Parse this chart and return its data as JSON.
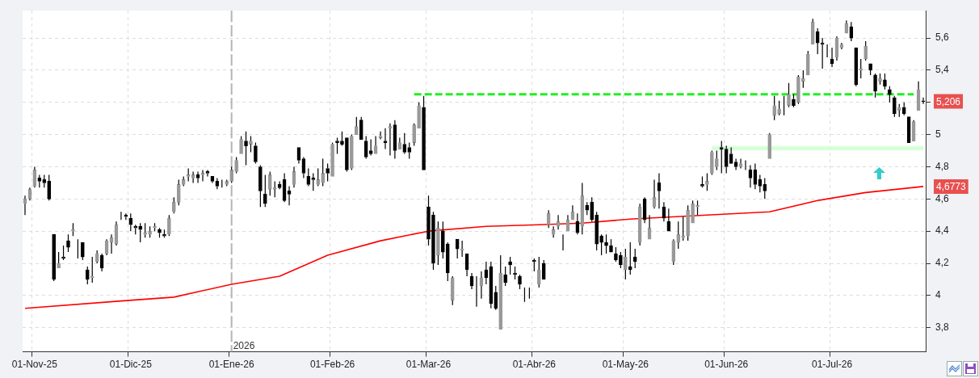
{
  "chart_data": {
    "type": "candlestick",
    "color": "#000000",
    "colors": [
      "#999999",
      "#999999",
      "#999999",
      "#000000",
      "#000000",
      "#000000",
      "#000000",
      "#999999",
      "#000000",
      "#000000",
      "#999999",
      "#999999",
      "#000000",
      "#000000",
      "#999999",
      "#999999",
      "#000000",
      "#999999",
      "#999999",
      "#999999",
      "#999999",
      "#000000",
      "#000000",
      "#000000",
      "#000000",
      "#999999",
      "#999999",
      "#999999",
      "#000000",
      "#000000",
      "#999999",
      "#999999",
      "#999999",
      "#999999",
      "#999999",
      "#999999",
      "#000000",
      "#999999",
      "#000000",
      "#000000",
      "#000000",
      "#999999",
      "#999999",
      "#999999",
      "#999999",
      "#999999",
      "#000000",
      "#999999",
      "#000000",
      "#000000",
      "#000000",
      "#999999",
      "#999999",
      "#000000",
      "#000000",
      "#000000",
      "#999999",
      "#000000",
      "#000000",
      "#000000",
      "#000000",
      "#999999",
      "#999999",
      "#000000",
      "#999999",
      "#000000",
      "#000000",
      "#000000",
      "#999999",
      "#999999",
      "#000000",
      "#000000",
      "#000000",
      "#999999",
      "#999999",
      "#000000",
      "#999999",
      "#000000",
      "#999999",
      "#000000",
      "#000000",
      "#999999",
      "#999999",
      "#000000",
      "#000000",
      "#000000",
      "#999999",
      "#000000",
      "#000000",
      "#999999",
      "#000000",
      "#999999",
      "#000000",
      "#000000",
      "#999999",
      "#999999",
      "#000000",
      "#000000",
      "#000000",
      "#999999",
      "#000000",
      "#000000",
      "#000000",
      "#000000",
      "#999999",
      "#999999",
      "#000000",
      "#999999",
      "#000000",
      "#999999",
      "#999999",
      "#999999",
      "#999999",
      "#999999",
      "#999999",
      "#000000",
      "#999999",
      "#000000",
      "#000000",
      "#000000",
      "#000000",
      "#000000",
      "#000000",
      "#000000",
      "#000000",
      "#999999",
      "#000000",
      "#000000",
      "#999999",
      "#000000",
      "#999999",
      "#999999",
      "#000000",
      "#000000",
      "#000000",
      "#999999",
      "#999999",
      "#999999",
      "#999999",
      "#999999",
      "#999999",
      "#000000",
      "#999999",
      "#999999",
      "#999999",
      "#000000",
      "#000000",
      "#000000",
      "#000000",
      "#999999",
      "#999999",
      "#000000",
      "#000000",
      "#000000",
      "#000000",
      "#999999",
      "#999999",
      "#999999",
      "#999999",
      "#999999",
      "#000000",
      "#999999",
      "#999999",
      "#999999",
      "#999999",
      "#000000",
      "#000000",
      "#999999",
      "#000000",
      "#999999",
      "#999999",
      "#999999",
      "#000000",
      "#000000",
      "#999999",
      "#999999",
      "#000000",
      "#000000",
      "#999999",
      "#000000",
      "#000000",
      "#000000",
      "#999999",
      "#000000",
      "#000000",
      "#999999",
      "#999999",
      "#000000"
    ],
    "categories": [
      null,
      null,
      "01-Nov-25",
      null,
      null,
      null,
      null,
      null,
      null,
      null,
      null,
      null,
      null,
      null,
      null,
      null,
      null,
      null,
      null,
      null,
      null,
      null,
      "01-Dic-25",
      null,
      null,
      null,
      null,
      null,
      null,
      null,
      null,
      null,
      null,
      null,
      null,
      null,
      null,
      null,
      null,
      null,
      null,
      null,
      null,
      "01-Ene-26",
      null,
      null,
      null,
      null,
      null,
      null,
      null,
      null,
      null,
      null,
      null,
      null,
      null,
      null,
      null,
      null,
      null,
      null,
      null,
      null,
      "01-Feb-26",
      null,
      null,
      null,
      null,
      null,
      null,
      null,
      null,
      null,
      null,
      null,
      null,
      null,
      null,
      null,
      null,
      null,
      null,
      null,
      "01-Mar-26",
      null,
      null,
      null,
      null,
      null,
      null,
      null,
      null,
      null,
      null,
      null,
      null,
      null,
      null,
      null,
      null,
      null,
      null,
      null,
      null,
      null,
      "01-Abr-26",
      null,
      null,
      null,
      null,
      null,
      null,
      null,
      null,
      null,
      null,
      null,
      null,
      null,
      null,
      null,
      null,
      null,
      null,
      "01-May-26",
      null,
      null,
      null,
      null,
      null,
      null,
      null,
      null,
      null,
      null,
      null,
      null,
      null,
      null,
      null,
      null,
      null,
      null,
      null,
      null,
      "01-Jun-26",
      null,
      null,
      null,
      null,
      null,
      null,
      null,
      null,
      null,
      null,
      null,
      null,
      null,
      null,
      null,
      null,
      null,
      null,
      null,
      null,
      null,
      "01-Jul-26",
      null,
      null,
      null,
      null,
      null,
      null,
      null,
      null,
      null,
      null,
      null,
      null,
      null,
      null,
      null,
      null,
      null,
      null,
      null
    ],
    "ohlc": [
      [
        4.57,
        4.62,
        4.5,
        4.6
      ],
      [
        4.6,
        4.67,
        4.59,
        4.66
      ],
      [
        4.68,
        4.8,
        4.67,
        4.78
      ],
      [
        4.73,
        4.75,
        4.67,
        4.71
      ],
      [
        4.72,
        4.75,
        4.67,
        4.7
      ],
      [
        4.71,
        4.75,
        4.59,
        4.6
      ],
      [
        4.38,
        4.38,
        4.09,
        4.1
      ],
      [
        4.17,
        4.27,
        4.17,
        4.2
      ],
      [
        4.24,
        4.31,
        4.22,
        4.23
      ],
      [
        4.34,
        4.38,
        4.27,
        4.3
      ],
      [
        4.4,
        4.45,
        4.37,
        4.41
      ],
      [
        4.32,
        4.35,
        4.23,
        4.32
      ],
      [
        4.33,
        4.33,
        4.22,
        4.24
      ],
      [
        4.16,
        4.18,
        4.07,
        4.1
      ],
      [
        4.11,
        4.24,
        4.08,
        4.12
      ],
      [
        4.21,
        4.28,
        4.2,
        4.26
      ],
      [
        4.25,
        4.26,
        4.15,
        4.17
      ],
      [
        4.26,
        4.35,
        4.25,
        4.34
      ],
      [
        4.33,
        4.38,
        4.26,
        4.36
      ],
      [
        4.32,
        4.46,
        4.31,
        4.44
      ],
      [
        4.49,
        4.52,
        4.47,
        4.49
      ],
      [
        4.5,
        4.51,
        4.47,
        4.49
      ],
      [
        4.48,
        4.51,
        4.4,
        4.44
      ],
      [
        4.43,
        4.44,
        4.38,
        4.42
      ],
      [
        4.43,
        4.45,
        4.33,
        4.41
      ],
      [
        4.38,
        4.45,
        4.36,
        4.39
      ],
      [
        4.38,
        4.43,
        4.36,
        4.4
      ],
      [
        4.42,
        4.45,
        4.4,
        4.43
      ],
      [
        4.41,
        4.42,
        4.36,
        4.39
      ],
      [
        4.38,
        4.41,
        4.36,
        4.37
      ],
      [
        4.38,
        4.5,
        4.37,
        4.48
      ],
      [
        4.52,
        4.61,
        4.51,
        4.58
      ],
      [
        4.58,
        4.72,
        4.56,
        4.69
      ],
      [
        4.69,
        4.74,
        4.68,
        4.72
      ],
      [
        4.74,
        4.79,
        4.71,
        4.75
      ],
      [
        4.73,
        4.77,
        4.7,
        4.75
      ],
      [
        4.75,
        4.77,
        4.7,
        4.73
      ],
      [
        4.75,
        4.78,
        4.71,
        4.76
      ],
      [
        4.77,
        4.78,
        4.74,
        4.76
      ],
      [
        4.74,
        4.74,
        4.7,
        4.71
      ],
      [
        4.71,
        4.73,
        4.66,
        4.68
      ],
      [
        4.7,
        4.72,
        4.67,
        4.7
      ],
      [
        4.69,
        4.72,
        4.68,
        4.71
      ],
      [
        4.71,
        4.8,
        4.7,
        4.78
      ],
      [
        4.77,
        4.86,
        4.76,
        4.84
      ],
      [
        4.88,
        4.99,
        4.88,
        4.97
      ],
      [
        4.96,
        5.02,
        4.81,
        4.93
      ],
      [
        4.94,
        4.99,
        4.89,
        4.96
      ],
      [
        4.93,
        4.95,
        4.82,
        4.83
      ],
      [
        4.8,
        4.81,
        4.55,
        4.65
      ],
      [
        4.63,
        4.75,
        4.55,
        4.57
      ],
      [
        4.66,
        4.77,
        4.62,
        4.75
      ],
      [
        4.66,
        4.71,
        4.61,
        4.67
      ],
      [
        4.69,
        4.71,
        4.66,
        4.67
      ],
      [
        4.72,
        4.76,
        4.58,
        4.59
      ],
      [
        4.65,
        4.68,
        4.56,
        4.63
      ],
      [
        4.69,
        4.8,
        4.67,
        4.77
      ],
      [
        4.92,
        4.92,
        4.82,
        4.84
      ],
      [
        4.85,
        4.86,
        4.73,
        4.76
      ],
      [
        4.74,
        4.79,
        4.68,
        4.69
      ],
      [
        4.73,
        4.76,
        4.65,
        4.72
      ],
      [
        4.69,
        4.79,
        4.68,
        4.72
      ],
      [
        4.7,
        4.85,
        4.68,
        4.76
      ],
      [
        4.79,
        4.82,
        4.71,
        4.76
      ],
      [
        4.74,
        4.95,
        4.74,
        4.94
      ],
      [
        4.96,
        4.98,
        4.88,
        4.95
      ],
      [
        4.96,
        5.02,
        4.93,
        4.94
      ],
      [
        4.98,
        4.98,
        4.77,
        4.78
      ],
      [
        4.79,
        5.0,
        4.78,
        4.99
      ],
      [
        5.0,
        5.11,
        5.0,
        5.05
      ],
      [
        5.09,
        5.11,
        4.97,
        4.97
      ],
      [
        4.96,
        4.99,
        4.85,
        4.86
      ],
      [
        4.9,
        4.97,
        4.87,
        4.88
      ],
      [
        4.88,
        4.99,
        4.88,
        4.93
      ],
      [
        4.98,
        5.02,
        4.97,
        4.99
      ],
      [
        4.96,
        5.04,
        4.91,
        4.95
      ],
      [
        5.04,
        5.07,
        4.87,
        5.05
      ],
      [
        5.06,
        5.09,
        4.85,
        4.9
      ],
      [
        4.91,
        4.98,
        4.91,
        4.95
      ],
      [
        4.94,
        5.01,
        4.88,
        4.89
      ],
      [
        4.92,
        4.95,
        4.85,
        4.89
      ],
      [
        4.95,
        5.07,
        4.93,
        5.06
      ],
      [
        5.04,
        5.2,
        5.04,
        5.18
      ],
      [
        5.17,
        5.24,
        4.78,
        4.78
      ],
      [
        4.55,
        4.62,
        4.31,
        4.35
      ],
      [
        4.5,
        4.52,
        4.16,
        4.2
      ],
      [
        4.25,
        4.46,
        4.19,
        4.42
      ],
      [
        4.4,
        4.46,
        4.23,
        4.27
      ],
      [
        4.32,
        4.33,
        4.09,
        4.14
      ],
      [
        3.97,
        4.12,
        3.94,
        4.11
      ],
      [
        4.35,
        4.35,
        4.23,
        4.29
      ],
      [
        4.28,
        4.34,
        4.24,
        4.29
      ],
      [
        4.26,
        4.26,
        4.12,
        4.16
      ],
      [
        4.12,
        4.14,
        4.04,
        4.06
      ],
      [
        4.05,
        4.12,
        3.93,
        4.05
      ],
      [
        4.06,
        4.15,
        3.98,
        4.11
      ],
      [
        4.16,
        4.21,
        4.07,
        4.11
      ],
      [
        4.18,
        4.21,
        3.92,
        3.95
      ],
      [
        4.02,
        4.06,
        3.91,
        3.92
      ],
      [
        3.79,
        4.25,
        3.79,
        4.14
      ],
      [
        4.13,
        4.18,
        4.06,
        4.08
      ],
      [
        4.21,
        4.24,
        4.13,
        4.19
      ],
      [
        4.14,
        4.18,
        4.1,
        4.13
      ],
      [
        4.12,
        4.13,
        4.04,
        4.07
      ],
      [
        3.99,
        4.05,
        3.96,
        3.99
      ],
      [
        4.0,
        4.05,
        3.98,
        4.0
      ],
      [
        4.22,
        4.23,
        4.15,
        4.21
      ],
      [
        4.07,
        4.24,
        4.05,
        4.16
      ],
      [
        4.2,
        4.22,
        4.1,
        4.1
      ],
      [
        4.44,
        4.53,
        4.42,
        4.51
      ],
      [
        4.38,
        4.43,
        4.36,
        4.41
      ],
      [
        4.43,
        4.5,
        4.41,
        4.46
      ],
      [
        4.34,
        4.38,
        4.28,
        4.34
      ],
      [
        4.4,
        4.5,
        4.4,
        4.47
      ],
      [
        4.47,
        4.56,
        4.47,
        4.52
      ],
      [
        4.46,
        4.51,
        4.38,
        4.39
      ],
      [
        4.43,
        4.7,
        4.38,
        4.62
      ],
      [
        4.56,
        4.58,
        4.5,
        4.53
      ],
      [
        4.58,
        4.61,
        4.46,
        4.47
      ],
      [
        4.5,
        4.52,
        4.28,
        4.32
      ],
      [
        4.37,
        4.38,
        4.25,
        4.33
      ],
      [
        4.33,
        4.38,
        4.26,
        4.31
      ],
      [
        4.31,
        4.35,
        4.27,
        4.27
      ],
      [
        4.26,
        4.3,
        4.21,
        4.22
      ],
      [
        4.25,
        4.27,
        4.17,
        4.19
      ],
      [
        4.16,
        4.29,
        4.1,
        4.24
      ],
      [
        4.18,
        4.33,
        4.13,
        4.16
      ],
      [
        4.24,
        4.29,
        4.17,
        4.21
      ],
      [
        4.33,
        4.57,
        4.31,
        4.55
      ],
      [
        4.6,
        4.61,
        4.45,
        4.47
      ],
      [
        4.35,
        4.5,
        4.35,
        4.42
      ],
      [
        4.55,
        4.72,
        4.54,
        4.61
      ],
      [
        4.7,
        4.76,
        4.54,
        4.65
      ],
      [
        4.55,
        4.58,
        4.46,
        4.48
      ],
      [
        4.46,
        4.54,
        4.4,
        4.4
      ],
      [
        4.21,
        4.35,
        4.19,
        4.34
      ],
      [
        4.33,
        4.46,
        4.29,
        4.38
      ],
      [
        4.36,
        4.49,
        4.34,
        4.37
      ],
      [
        4.37,
        4.56,
        4.34,
        4.53
      ],
      [
        4.45,
        4.59,
        4.45,
        4.57
      ],
      [
        4.55,
        4.59,
        4.5,
        4.56
      ],
      [
        4.69,
        4.74,
        4.67,
        4.68
      ],
      [
        4.69,
        4.76,
        4.65,
        4.71
      ],
      [
        4.76,
        4.9,
        4.75,
        4.89
      ],
      [
        4.8,
        4.9,
        4.78,
        4.85
      ],
      [
        4.92,
        4.96,
        4.76,
        4.91
      ],
      [
        4.91,
        4.93,
        4.76,
        4.8
      ],
      [
        4.88,
        4.92,
        4.82,
        4.82
      ],
      [
        4.83,
        4.85,
        4.78,
        4.8
      ],
      [
        4.8,
        4.85,
        4.79,
        4.82
      ],
      [
        4.83,
        4.84,
        4.78,
        4.83
      ],
      [
        4.78,
        4.81,
        4.67,
        4.73
      ],
      [
        4.78,
        4.82,
        4.66,
        4.69
      ],
      [
        4.72,
        4.75,
        4.64,
        4.68
      ],
      [
        4.69,
        4.73,
        4.6,
        4.65
      ],
      [
        4.85,
        5.01,
        4.85,
        5.0
      ],
      [
        5.12,
        5.24,
        5.09,
        5.18
      ],
      [
        5.13,
        5.21,
        5.12,
        5.16
      ],
      [
        5.14,
        5.24,
        5.12,
        5.14
      ],
      [
        5.18,
        5.32,
        5.17,
        5.25
      ],
      [
        5.22,
        5.25,
        5.17,
        5.18
      ],
      [
        5.2,
        5.37,
        5.19,
        5.36
      ],
      [
        5.33,
        5.4,
        5.29,
        5.35
      ],
      [
        5.37,
        5.52,
        5.37,
        5.5
      ],
      [
        5.56,
        5.72,
        5.56,
        5.7
      ],
      [
        5.64,
        5.66,
        5.5,
        5.57
      ],
      [
        5.57,
        5.6,
        5.41,
        5.56
      ],
      [
        5.55,
        5.56,
        5.48,
        5.55
      ],
      [
        5.47,
        5.54,
        5.42,
        5.44
      ],
      [
        5.48,
        5.61,
        5.46,
        5.6
      ],
      [
        5.54,
        5.57,
        5.53,
        5.56
      ],
      [
        5.63,
        5.71,
        5.63,
        5.69
      ],
      [
        5.67,
        5.7,
        5.58,
        5.6
      ],
      [
        5.54,
        5.54,
        5.3,
        5.31
      ],
      [
        5.4,
        5.47,
        5.35,
        5.41
      ],
      [
        5.47,
        5.58,
        5.46,
        5.55
      ],
      [
        5.44,
        5.44,
        5.37,
        5.4
      ],
      [
        5.37,
        5.38,
        5.23,
        5.27
      ],
      [
        5.33,
        5.38,
        5.31,
        5.35
      ],
      [
        5.34,
        5.38,
        5.28,
        5.3
      ],
      [
        5.28,
        5.3,
        5.2,
        5.25
      ],
      [
        5.23,
        5.24,
        5.11,
        5.13
      ],
      [
        5.15,
        5.19,
        5.11,
        5.17
      ],
      [
        5.17,
        5.2,
        5.12,
        5.13
      ],
      [
        5.11,
        5.11,
        4.95,
        4.95
      ],
      [
        4.96,
        5.09,
        4.96,
        5.08
      ],
      [
        5.15,
        5.33,
        5.15,
        5.28
      ],
      [
        5.21,
        5.23,
        5.19,
        5.206
      ]
    ],
    "series": [
      {
        "type": "line",
        "color": "#ff0000",
        "line_style": "solid",
        "values": [
          3.92,
          null,
          null,
          null,
          null,
          null,
          null,
          null,
          null,
          null,
          null,
          null,
          null,
          null,
          null,
          null,
          null,
          null,
          null,
          null,
          3.966,
          null,
          null,
          null,
          null,
          null,
          null,
          null,
          null,
          null,
          null,
          3.99,
          null,
          null,
          null,
          null,
          null,
          null,
          null,
          null,
          null,
          null,
          null,
          4.07,
          null,
          null,
          null,
          null,
          null,
          null,
          null,
          null,
          null,
          4.12,
          null,
          null,
          null,
          null,
          null,
          null,
          null,
          null,
          null,
          4.25,
          null,
          null,
          null,
          null,
          null,
          null,
          null,
          null,
          null,
          null,
          4.34,
          null,
          null,
          null,
          null,
          null,
          null,
          null,
          null,
          null,
          4.4,
          null,
          null,
          null,
          null,
          null,
          null,
          null,
          null,
          null,
          null,
          null,
          4.43,
          null,
          null,
          null,
          null,
          null,
          null,
          null,
          null,
          null,
          null,
          4.44,
          null,
          null,
          null,
          null,
          null,
          null,
          null,
          null,
          4.45,
          null,
          null,
          null,
          null,
          null,
          null,
          null,
          null,
          null,
          4.475,
          null,
          null,
          null,
          null,
          null,
          null,
          null,
          null,
          null,
          null,
          null,
          null,
          null,
          null,
          null,
          4.5,
          null,
          null,
          null,
          null,
          null,
          null,
          null,
          null,
          null,
          null,
          null,
          null,
          4.52,
          null,
          null,
          null,
          null,
          null,
          null,
          null,
          null,
          null,
          4.59,
          null,
          null,
          null,
          null,
          null,
          null,
          null,
          null,
          null,
          4.64,
          null,
          null,
          null,
          null,
          null,
          null,
          null,
          null,
          null,
          null,
          null,
          4.6773
        ],
        "value_labels": [
          null,
          null,
          null,
          null,
          null,
          null,
          null,
          null,
          null,
          null,
          null,
          null,
          null,
          null,
          null,
          null,
          null,
          null,
          null,
          null,
          null,
          null,
          null,
          null,
          null,
          null,
          null,
          null,
          null,
          null,
          null,
          null,
          null,
          null,
          null,
          null,
          null,
          null,
          null,
          null,
          null,
          null,
          null,
          null,
          null,
          null,
          null,
          null,
          null,
          null,
          null,
          null,
          null,
          null,
          null,
          null,
          null,
          null,
          null,
          null,
          null,
          null,
          null,
          null,
          null,
          null,
          null,
          null,
          null,
          null,
          null,
          null,
          null,
          null,
          null,
          null,
          null,
          null,
          null,
          null,
          null,
          null,
          null,
          null,
          null,
          null,
          null,
          null,
          null,
          null,
          null,
          null,
          null,
          null,
          null,
          null,
          null,
          null,
          null,
          null,
          null,
          null,
          null,
          null,
          null,
          null,
          null,
          null,
          null,
          null,
          null,
          null,
          null,
          null,
          null,
          null,
          null,
          null,
          null,
          null,
          null,
          null,
          null,
          null,
          null,
          null,
          null,
          null,
          null,
          null,
          null,
          null,
          null,
          null,
          null,
          null,
          null,
          null,
          null,
          null,
          null,
          null,
          null,
          null,
          null,
          null,
          null,
          null,
          null,
          null,
          null,
          null,
          null,
          null,
          null,
          null,
          null,
          null,
          null,
          null,
          null,
          null,
          null,
          null,
          null,
          null,
          null,
          null,
          null,
          null,
          null,
          null,
          null,
          null,
          null,
          null,
          null,
          null,
          null,
          null,
          null,
          null,
          null,
          null,
          null,
          null,
          null,
          "4,6773"
        ]
      },
      {
        "type": "line",
        "color": "#22ee22",
        "line_style": "dashed",
        "values": [
          null,
          null,
          null,
          null,
          null,
          null,
          null,
          null,
          null,
          null,
          null,
          null,
          null,
          null,
          null,
          null,
          null,
          null,
          null,
          null,
          null,
          null,
          null,
          null,
          null,
          null,
          null,
          null,
          null,
          null,
          null,
          null,
          null,
          null,
          null,
          null,
          null,
          null,
          null,
          null,
          null,
          null,
          null,
          null,
          null,
          null,
          null,
          null,
          null,
          null,
          null,
          null,
          null,
          null,
          null,
          null,
          null,
          null,
          null,
          null,
          null,
          null,
          null,
          null,
          null,
          null,
          null,
          null,
          null,
          null,
          null,
          null,
          null,
          null,
          null,
          null,
          null,
          null,
          null,
          null,
          null,
          5.25,
          null,
          null,
          null,
          null,
          null,
          null,
          null,
          null,
          null,
          null,
          null,
          null,
          null,
          null,
          null,
          null,
          null,
          null,
          null,
          null,
          null,
          null,
          null,
          null,
          null,
          null,
          null,
          null,
          null,
          null,
          null,
          null,
          null,
          null,
          null,
          null,
          null,
          null,
          null,
          null,
          null,
          null,
          null,
          null,
          null,
          null,
          null,
          null,
          null,
          null,
          null,
          null,
          null,
          null,
          null,
          null,
          null,
          null,
          null,
          null,
          null,
          null,
          null,
          null,
          null,
          null,
          null,
          null,
          null,
          null,
          null,
          null,
          null,
          null,
          null,
          null,
          null,
          null,
          null,
          null,
          null,
          null,
          null,
          null,
          null,
          null,
          null,
          null,
          null,
          null,
          null,
          null,
          null,
          null,
          null,
          null,
          null,
          null,
          null,
          null,
          null,
          null,
          null,
          5.25,
          null,
          null
        ]
      },
      {
        "type": "line",
        "color": "#ccffcc",
        "line_style": "solid",
        "values": [
          null,
          null,
          null,
          null,
          null,
          null,
          null,
          null,
          null,
          null,
          null,
          null,
          null,
          null,
          null,
          null,
          null,
          null,
          null,
          null,
          null,
          null,
          null,
          null,
          null,
          null,
          null,
          null,
          null,
          null,
          null,
          null,
          null,
          null,
          null,
          null,
          null,
          null,
          null,
          null,
          null,
          null,
          null,
          null,
          null,
          null,
          null,
          null,
          null,
          null,
          null,
          null,
          null,
          null,
          null,
          null,
          null,
          null,
          null,
          null,
          null,
          null,
          null,
          null,
          null,
          null,
          null,
          null,
          null,
          null,
          null,
          null,
          null,
          null,
          null,
          null,
          null,
          null,
          null,
          null,
          null,
          null,
          null,
          null,
          null,
          null,
          null,
          null,
          null,
          null,
          null,
          null,
          null,
          null,
          null,
          null,
          null,
          null,
          null,
          null,
          null,
          null,
          null,
          null,
          null,
          null,
          null,
          null,
          null,
          null,
          null,
          null,
          null,
          null,
          null,
          null,
          null,
          null,
          null,
          null,
          null,
          null,
          null,
          null,
          null,
          null,
          null,
          null,
          null,
          null,
          null,
          null,
          null,
          null,
          null,
          null,
          null,
          null,
          null,
          null,
          null,
          null,
          null,
          4.915,
          null,
          null,
          null,
          null,
          null,
          null,
          null,
          null,
          null,
          null,
          null,
          null,
          null,
          null,
          null,
          null,
          null,
          null,
          null,
          null,
          null,
          null,
          null,
          null,
          null,
          null,
          null,
          null,
          null,
          null,
          null,
          null,
          null,
          null,
          null,
          null,
          null,
          null,
          null,
          null,
          null,
          null,
          null,
          4.915
        ],
        "lower": [
          null,
          null,
          null,
          null,
          null,
          null,
          null,
          null,
          null,
          null,
          null,
          null,
          null,
          null,
          null,
          null,
          null,
          null,
          null,
          null,
          null,
          null,
          null,
          null,
          null,
          null,
          null,
          null,
          null,
          null,
          null,
          null,
          null,
          null,
          null,
          null,
          null,
          null,
          null,
          null,
          null,
          null,
          null,
          null,
          null,
          null,
          null,
          null,
          null,
          null,
          null,
          null,
          null,
          null,
          null,
          null,
          null,
          null,
          null,
          null,
          null,
          null,
          null,
          null,
          null,
          null,
          null,
          null,
          null,
          null,
          null,
          null,
          null,
          null,
          null,
          null,
          null,
          null,
          null,
          null,
          null,
          null,
          null,
          null,
          null,
          null,
          null,
          null,
          null,
          null,
          null,
          null,
          null,
          null,
          null,
          null,
          null,
          null,
          null,
          null,
          null,
          null,
          null,
          null,
          null,
          null,
          null,
          null,
          null,
          null,
          null,
          null,
          null,
          null,
          null,
          null,
          null,
          null,
          null,
          null,
          null,
          null,
          null,
          null,
          null,
          null,
          null,
          null,
          null,
          null,
          null,
          null,
          null,
          null,
          null,
          null,
          null,
          null,
          null,
          null,
          null,
          null,
          null,
          4.9,
          null,
          null,
          null,
          null,
          null,
          null,
          null,
          null,
          null,
          null,
          null,
          null,
          null,
          null,
          null,
          null,
          null,
          null,
          null,
          null,
          null,
          null,
          null,
          null,
          null,
          null,
          null,
          null,
          null,
          null,
          null,
          null,
          null,
          null,
          null,
          null,
          null,
          null,
          null,
          null,
          null,
          null,
          null,
          4.9
        ],
        "upper": [
          null,
          null,
          null,
          null,
          null,
          null,
          null,
          null,
          null,
          null,
          null,
          null,
          null,
          null,
          null,
          null,
          null,
          null,
          null,
          null,
          null,
          null,
          null,
          null,
          null,
          null,
          null,
          null,
          null,
          null,
          null,
          null,
          null,
          null,
          null,
          null,
          null,
          null,
          null,
          null,
          null,
          null,
          null,
          null,
          null,
          null,
          null,
          null,
          null,
          null,
          null,
          null,
          null,
          null,
          null,
          null,
          null,
          null,
          null,
          null,
          null,
          null,
          null,
          null,
          null,
          null,
          null,
          null,
          null,
          null,
          null,
          null,
          null,
          null,
          null,
          null,
          null,
          null,
          null,
          null,
          null,
          null,
          null,
          null,
          null,
          null,
          null,
          null,
          null,
          null,
          null,
          null,
          null,
          null,
          null,
          null,
          null,
          null,
          null,
          null,
          null,
          null,
          null,
          null,
          null,
          null,
          null,
          null,
          null,
          null,
          null,
          null,
          null,
          null,
          null,
          null,
          null,
          null,
          null,
          null,
          null,
          null,
          null,
          null,
          null,
          null,
          null,
          null,
          null,
          null,
          null,
          null,
          null,
          null,
          null,
          null,
          null,
          null,
          null,
          null,
          null,
          null,
          null,
          4.93,
          null,
          null,
          null,
          null,
          null,
          null,
          null,
          null,
          null,
          null,
          null,
          null,
          null,
          null,
          null,
          null,
          null,
          null,
          null,
          null,
          null,
          null,
          null,
          null,
          null,
          null,
          null,
          null,
          null,
          null,
          null,
          null,
          null,
          null,
          null,
          null,
          null,
          null,
          null,
          null,
          null,
          null,
          null,
          4.93
        ]
      }
    ],
    "ylim": [
      3.65,
      5.77
    ],
    "yticks": [
      {
        "value": 3.8,
        "label": "3,8"
      },
      4,
      {
        "value": 4.2,
        "label": "4,2"
      },
      {
        "value": 4.4,
        "label": "4,4"
      },
      {
        "value": 4.6,
        "label": "4,6"
      },
      {
        "value": 4.8,
        "label": "4,8"
      },
      5,
      {
        "value": 5.2,
        "label": null
      },
      {
        "value": 5.4,
        "label": "5,4"
      },
      {
        "value": 5.6,
        "label": "5,6"
      }
    ],
    "grid": true,
    "ref_lines": [
      {
        "axis": "x",
        "value": "01-Ene-26",
        "label": "2026"
      }
    ],
    "annotations": [
      "5,206"
    ]
  }
}
